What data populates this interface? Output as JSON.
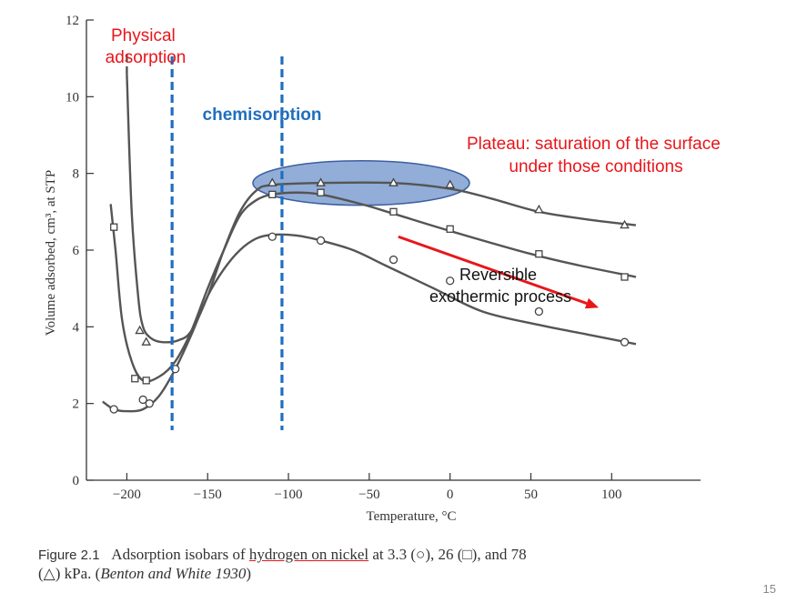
{
  "chart_data": {
    "type": "line",
    "xlabel": "Temperature, °C",
    "ylabel": "Volume adsorbed, cm³, at STP",
    "xlim": [
      -225,
      155
    ],
    "ylim": [
      0,
      12
    ],
    "x_ticks": [
      -200,
      -150,
      -100,
      -50,
      0,
      50,
      100
    ],
    "x_tick_labels": [
      "−200",
      "−150",
      "−100",
      "−50",
      "0",
      "50",
      "100"
    ],
    "y_ticks": [
      0,
      2,
      4,
      6,
      8,
      10,
      12
    ],
    "y_tick_labels": [
      "0",
      "2",
      "4",
      "6",
      "8",
      "10",
      "12"
    ],
    "grid": false,
    "series": [
      {
        "marker": "circle",
        "curve": [
          [
            -215,
            2.05
          ],
          [
            -208,
            1.85
          ],
          [
            -200,
            1.8
          ],
          [
            -190,
            1.85
          ],
          [
            -180,
            2.2
          ],
          [
            -170,
            2.9
          ],
          [
            -160,
            3.8
          ],
          [
            -150,
            4.8
          ],
          [
            -140,
            5.5
          ],
          [
            -130,
            6.0
          ],
          [
            -120,
            6.3
          ],
          [
            -110,
            6.4
          ],
          [
            -95,
            6.38
          ],
          [
            -80,
            6.25
          ],
          [
            -60,
            6.0
          ],
          [
            -40,
            5.6
          ],
          [
            -10,
            5.0
          ],
          [
            20,
            4.4
          ],
          [
            55,
            4.05
          ],
          [
            85,
            3.8
          ],
          [
            115,
            3.55
          ]
        ],
        "points": [
          [
            -208,
            1.85
          ],
          [
            -190,
            2.1
          ],
          [
            -186,
            2.0
          ],
          [
            -170,
            2.9
          ],
          [
            -110,
            6.35
          ],
          [
            -80,
            6.25
          ],
          [
            -35,
            5.75
          ],
          [
            0,
            5.2
          ],
          [
            55,
            4.4
          ],
          [
            108,
            3.6
          ]
        ]
      },
      {
        "marker": "square",
        "curve": [
          [
            -210,
            7.2
          ],
          [
            -207,
            6.0
          ],
          [
            -203,
            4.2
          ],
          [
            -197,
            3.1
          ],
          [
            -190,
            2.6
          ],
          [
            -180,
            2.7
          ],
          [
            -170,
            3.1
          ],
          [
            -160,
            3.9
          ],
          [
            -150,
            5.0
          ],
          [
            -140,
            6.0
          ],
          [
            -130,
            6.9
          ],
          [
            -120,
            7.3
          ],
          [
            -110,
            7.45
          ],
          [
            -95,
            7.5
          ],
          [
            -80,
            7.45
          ],
          [
            -55,
            7.2
          ],
          [
            -35,
            6.95
          ],
          [
            0,
            6.5
          ],
          [
            50,
            5.9
          ],
          [
            80,
            5.6
          ],
          [
            115,
            5.3
          ]
        ],
        "points": [
          [
            -208,
            6.6
          ],
          [
            -195,
            2.65
          ],
          [
            -188,
            2.6
          ],
          [
            -110,
            7.45
          ],
          [
            -80,
            7.5
          ],
          [
            -35,
            7.0
          ],
          [
            0,
            6.55
          ],
          [
            55,
            5.9
          ],
          [
            108,
            5.3
          ]
        ]
      },
      {
        "marker": "triangle",
        "curve": [
          [
            -200,
            10.6
          ],
          [
            -197,
            7.0
          ],
          [
            -193,
            4.8
          ],
          [
            -190,
            4.0
          ],
          [
            -185,
            3.7
          ],
          [
            -178,
            3.6
          ],
          [
            -168,
            3.65
          ],
          [
            -160,
            3.9
          ],
          [
            -150,
            4.8
          ],
          [
            -140,
            6.0
          ],
          [
            -130,
            7.0
          ],
          [
            -120,
            7.55
          ],
          [
            -110,
            7.7
          ],
          [
            -80,
            7.75
          ],
          [
            -35,
            7.75
          ],
          [
            0,
            7.6
          ],
          [
            25,
            7.35
          ],
          [
            55,
            7.0
          ],
          [
            85,
            6.8
          ],
          [
            115,
            6.65
          ]
        ],
        "points": [
          [
            -192,
            3.9
          ],
          [
            -188,
            3.6
          ],
          [
            -110,
            7.75
          ],
          [
            -80,
            7.75
          ],
          [
            -35,
            7.75
          ],
          [
            0,
            7.7
          ],
          [
            55,
            7.05
          ],
          [
            108,
            6.65
          ]
        ]
      }
    ],
    "vertical_lines_x": [
      -172,
      -104
    ],
    "highlight_ellipse": {
      "center": [
        -55,
        7.75
      ],
      "rx_data": 67,
      "ry_data": 0.58
    },
    "annotations": {
      "physical": [
        "Physical",
        "adsorption"
      ],
      "chemisorption": "chemisorption",
      "plateau": [
        "Plateau: saturation of the surface",
        "under those conditions"
      ],
      "reversible": [
        "Reversible",
        "exothermic process"
      ]
    },
    "arrow": {
      "from": [
        -32,
        6.35
      ],
      "to": [
        92,
        4.5
      ]
    }
  },
  "caption": {
    "figure_label": "Figure 2.1",
    "text_before": "Adsorption isobars of ",
    "underlined": "hydrogen on nickel",
    "text_after_line1": " at 3.3 (○), 26 (□), and 78",
    "line2_start": "(△) kPa. (",
    "citation": "Benton and White 1930",
    "line2_end": ")"
  },
  "page_number": "15",
  "colors": {
    "axis": "#333333",
    "curve": "#555555",
    "annotation_red": "#e8161b",
    "annotation_blue": "#1f6fbf",
    "ellipse_fill": "#7f9fd0",
    "ellipse_stroke": "#3b5fa0"
  }
}
